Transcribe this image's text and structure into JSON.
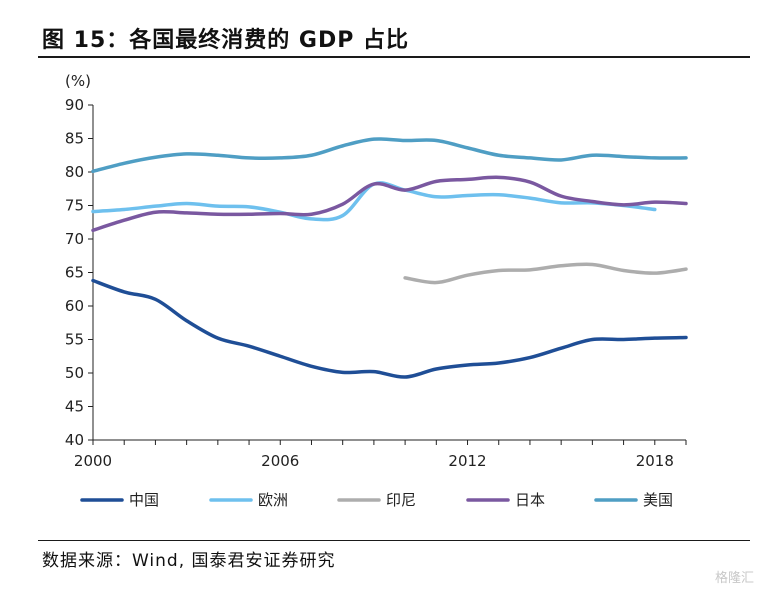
{
  "header": {
    "title": "图 15：各国最终消费的 GDP 占比"
  },
  "footer": {
    "source": "数据来源：Wind, 国泰君安证券研究",
    "watermark": "格隆汇"
  },
  "chart_data": {
    "type": "line",
    "title": "",
    "xlabel": "",
    "ylabel": "",
    "unit_label": "(%)",
    "ylim": [
      40,
      90
    ],
    "yticks": [
      40,
      45,
      50,
      55,
      60,
      65,
      70,
      75,
      80,
      85,
      90
    ],
    "xlim": [
      2000,
      2019
    ],
    "xticks": [
      2000,
      2006,
      2012,
      2018
    ],
    "grid": false,
    "legend_position": "bottom",
    "series": [
      {
        "name": "中国",
        "color": "#1f4e96",
        "x": [
          2000,
          2001,
          2002,
          2003,
          2004,
          2005,
          2006,
          2007,
          2008,
          2009,
          2010,
          2011,
          2012,
          2013,
          2014,
          2015,
          2016,
          2017,
          2018,
          2019
        ],
        "y": [
          63.8,
          62.1,
          61.0,
          57.8,
          55.2,
          54.0,
          52.5,
          51.0,
          50.1,
          50.2,
          49.4,
          50.6,
          51.2,
          51.5,
          52.3,
          53.7,
          55.0,
          55.0,
          55.2,
          55.3
        ]
      },
      {
        "name": "欧洲",
        "color": "#6ec0ee",
        "x": [
          2000,
          2001,
          2002,
          2003,
          2004,
          2005,
          2006,
          2007,
          2008,
          2009,
          2010,
          2011,
          2012,
          2013,
          2014,
          2015,
          2016,
          2017,
          2018
        ],
        "y": [
          74.1,
          74.4,
          74.9,
          75.3,
          74.9,
          74.8,
          74.0,
          73.0,
          73.5,
          78.2,
          77.3,
          76.3,
          76.5,
          76.6,
          76.1,
          75.4,
          75.4,
          75.0,
          74.4
        ]
      },
      {
        "name": "印尼",
        "color": "#adadad",
        "x": [
          2010,
          2011,
          2012,
          2013,
          2014,
          2015,
          2016,
          2017,
          2018,
          2019
        ],
        "y": [
          64.2,
          63.5,
          64.6,
          65.3,
          65.4,
          66.0,
          66.2,
          65.3,
          64.9,
          65.5
        ]
      },
      {
        "name": "日本",
        "color": "#7a58a0",
        "x": [
          2000,
          2001,
          2002,
          2003,
          2004,
          2005,
          2006,
          2007,
          2008,
          2009,
          2010,
          2011,
          2012,
          2013,
          2014,
          2015,
          2016,
          2017,
          2018,
          2019
        ],
        "y": [
          71.3,
          72.8,
          74.0,
          73.9,
          73.7,
          73.7,
          73.8,
          73.7,
          75.2,
          78.2,
          77.3,
          78.6,
          78.9,
          79.2,
          78.5,
          76.4,
          75.6,
          75.1,
          75.5,
          75.3
        ]
      },
      {
        "name": "美国",
        "color": "#4f9ec4",
        "x": [
          2000,
          2001,
          2002,
          2003,
          2004,
          2005,
          2006,
          2007,
          2008,
          2009,
          2010,
          2011,
          2012,
          2013,
          2014,
          2015,
          2016,
          2017,
          2018,
          2019
        ],
        "y": [
          80.1,
          81.3,
          82.2,
          82.7,
          82.5,
          82.1,
          82.1,
          82.5,
          83.9,
          84.9,
          84.7,
          84.7,
          83.6,
          82.5,
          82.1,
          81.8,
          82.5,
          82.3,
          82.1,
          82.1
        ]
      }
    ]
  }
}
